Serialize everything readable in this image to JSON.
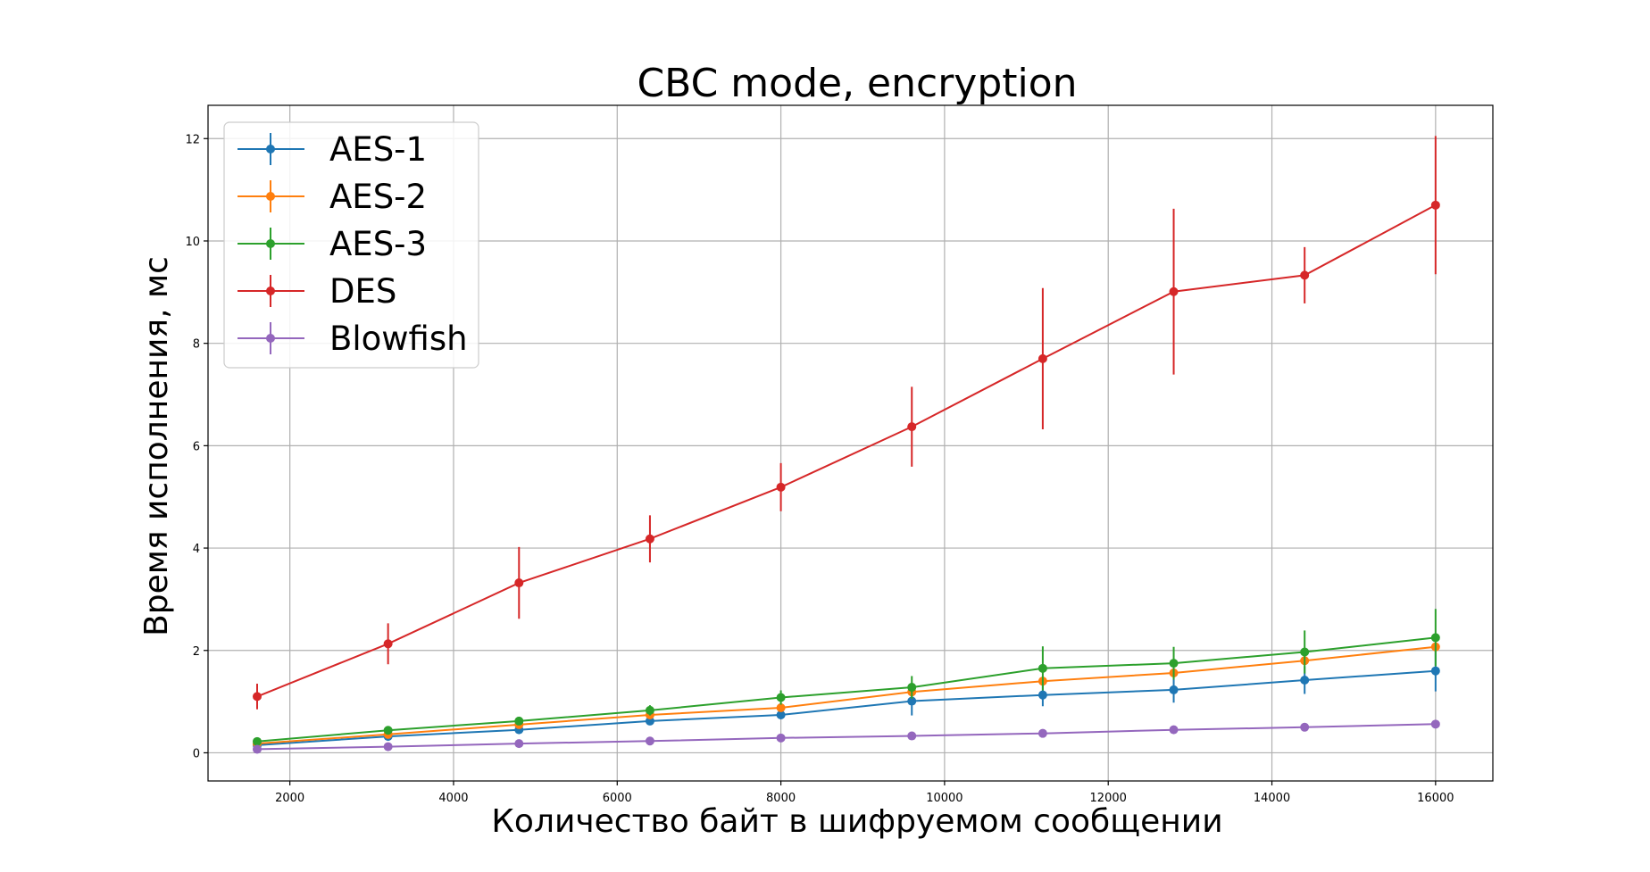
{
  "chart_data": {
    "type": "line",
    "title": "CBC mode, encryption",
    "xlabel": "Количество байт в шифруемом сообщении",
    "ylabel": "Время исполнения, мс",
    "xlim": [
      1000,
      16700
    ],
    "ylim": [
      -0.55,
      12.65
    ],
    "xticks": [
      2000,
      4000,
      6000,
      8000,
      10000,
      12000,
      14000,
      16000
    ],
    "yticks": [
      0,
      2,
      4,
      6,
      8,
      10,
      12
    ],
    "grid": true,
    "error_bars": true,
    "legend_position": "upper-left",
    "x": [
      1600,
      3200,
      4800,
      6400,
      8000,
      9600,
      11200,
      12800,
      14400,
      16000
    ],
    "series": [
      {
        "name": "AES-1",
        "color": "#1f77b4",
        "values": [
          0.15,
          0.32,
          0.45,
          0.62,
          0.74,
          1.01,
          1.13,
          1.23,
          1.42,
          1.6
        ],
        "errors": [
          0.05,
          0.06,
          0.06,
          0.08,
          0.08,
          0.28,
          0.22,
          0.25,
          0.27,
          0.4
        ]
      },
      {
        "name": "AES-2",
        "color": "#ff7f0e",
        "values": [
          0.18,
          0.36,
          0.55,
          0.74,
          0.88,
          1.19,
          1.4,
          1.56,
          1.8,
          2.07
        ]
      },
      {
        "name": "AES-3",
        "color": "#2ca02c",
        "values": [
          0.22,
          0.44,
          0.62,
          0.83,
          1.08,
          1.28,
          1.65,
          1.75,
          1.97,
          2.25
        ],
        "errors": [
          0.05,
          0.07,
          0.06,
          0.1,
          0.14,
          0.22,
          0.43,
          0.32,
          0.42,
          0.56
        ]
      },
      {
        "name": "DES",
        "color": "#d62728",
        "values": [
          1.1,
          2.13,
          3.32,
          4.18,
          5.19,
          6.37,
          7.7,
          9.01,
          9.33,
          10.7
        ],
        "errors": [
          0.25,
          0.4,
          0.7,
          0.46,
          0.47,
          0.78,
          1.38,
          1.62,
          0.55,
          1.35
        ]
      },
      {
        "name": "Blowfish",
        "color": "#9467bd",
        "values": [
          0.07,
          0.12,
          0.18,
          0.23,
          0.29,
          0.33,
          0.38,
          0.45,
          0.5,
          0.56
        ]
      }
    ]
  }
}
